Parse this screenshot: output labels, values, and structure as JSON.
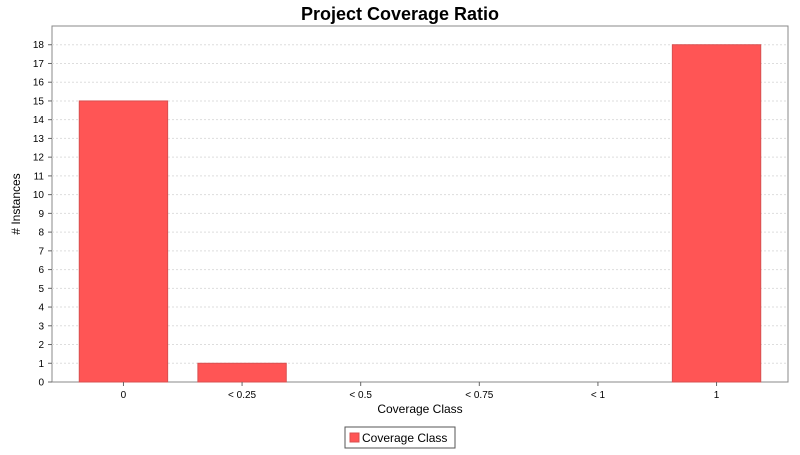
{
  "chart_data": {
    "type": "bar",
    "title": "Project Coverage Ratio",
    "xlabel": "Coverage Class",
    "ylabel": "# Instances",
    "categories": [
      "0",
      "< 0.25",
      "< 0.5",
      "< 0.75",
      "< 1",
      "1"
    ],
    "series": [
      {
        "name": "Coverage Class",
        "values": [
          15,
          1,
          0,
          0,
          0,
          18
        ]
      }
    ],
    "ylim": [
      0,
      19
    ],
    "yticks": [
      0,
      1,
      2,
      3,
      4,
      5,
      6,
      7,
      8,
      9,
      10,
      11,
      12,
      13,
      14,
      15,
      16,
      17,
      18
    ],
    "grid": true,
    "legend_position": "bottom-center"
  },
  "colors": {
    "bar_fill": "#ff5555",
    "bar_stroke": "#d85050",
    "plot_background": "#ffffff",
    "plot_border": "#888888",
    "gridline": "#dddddd",
    "text": "#000000"
  }
}
